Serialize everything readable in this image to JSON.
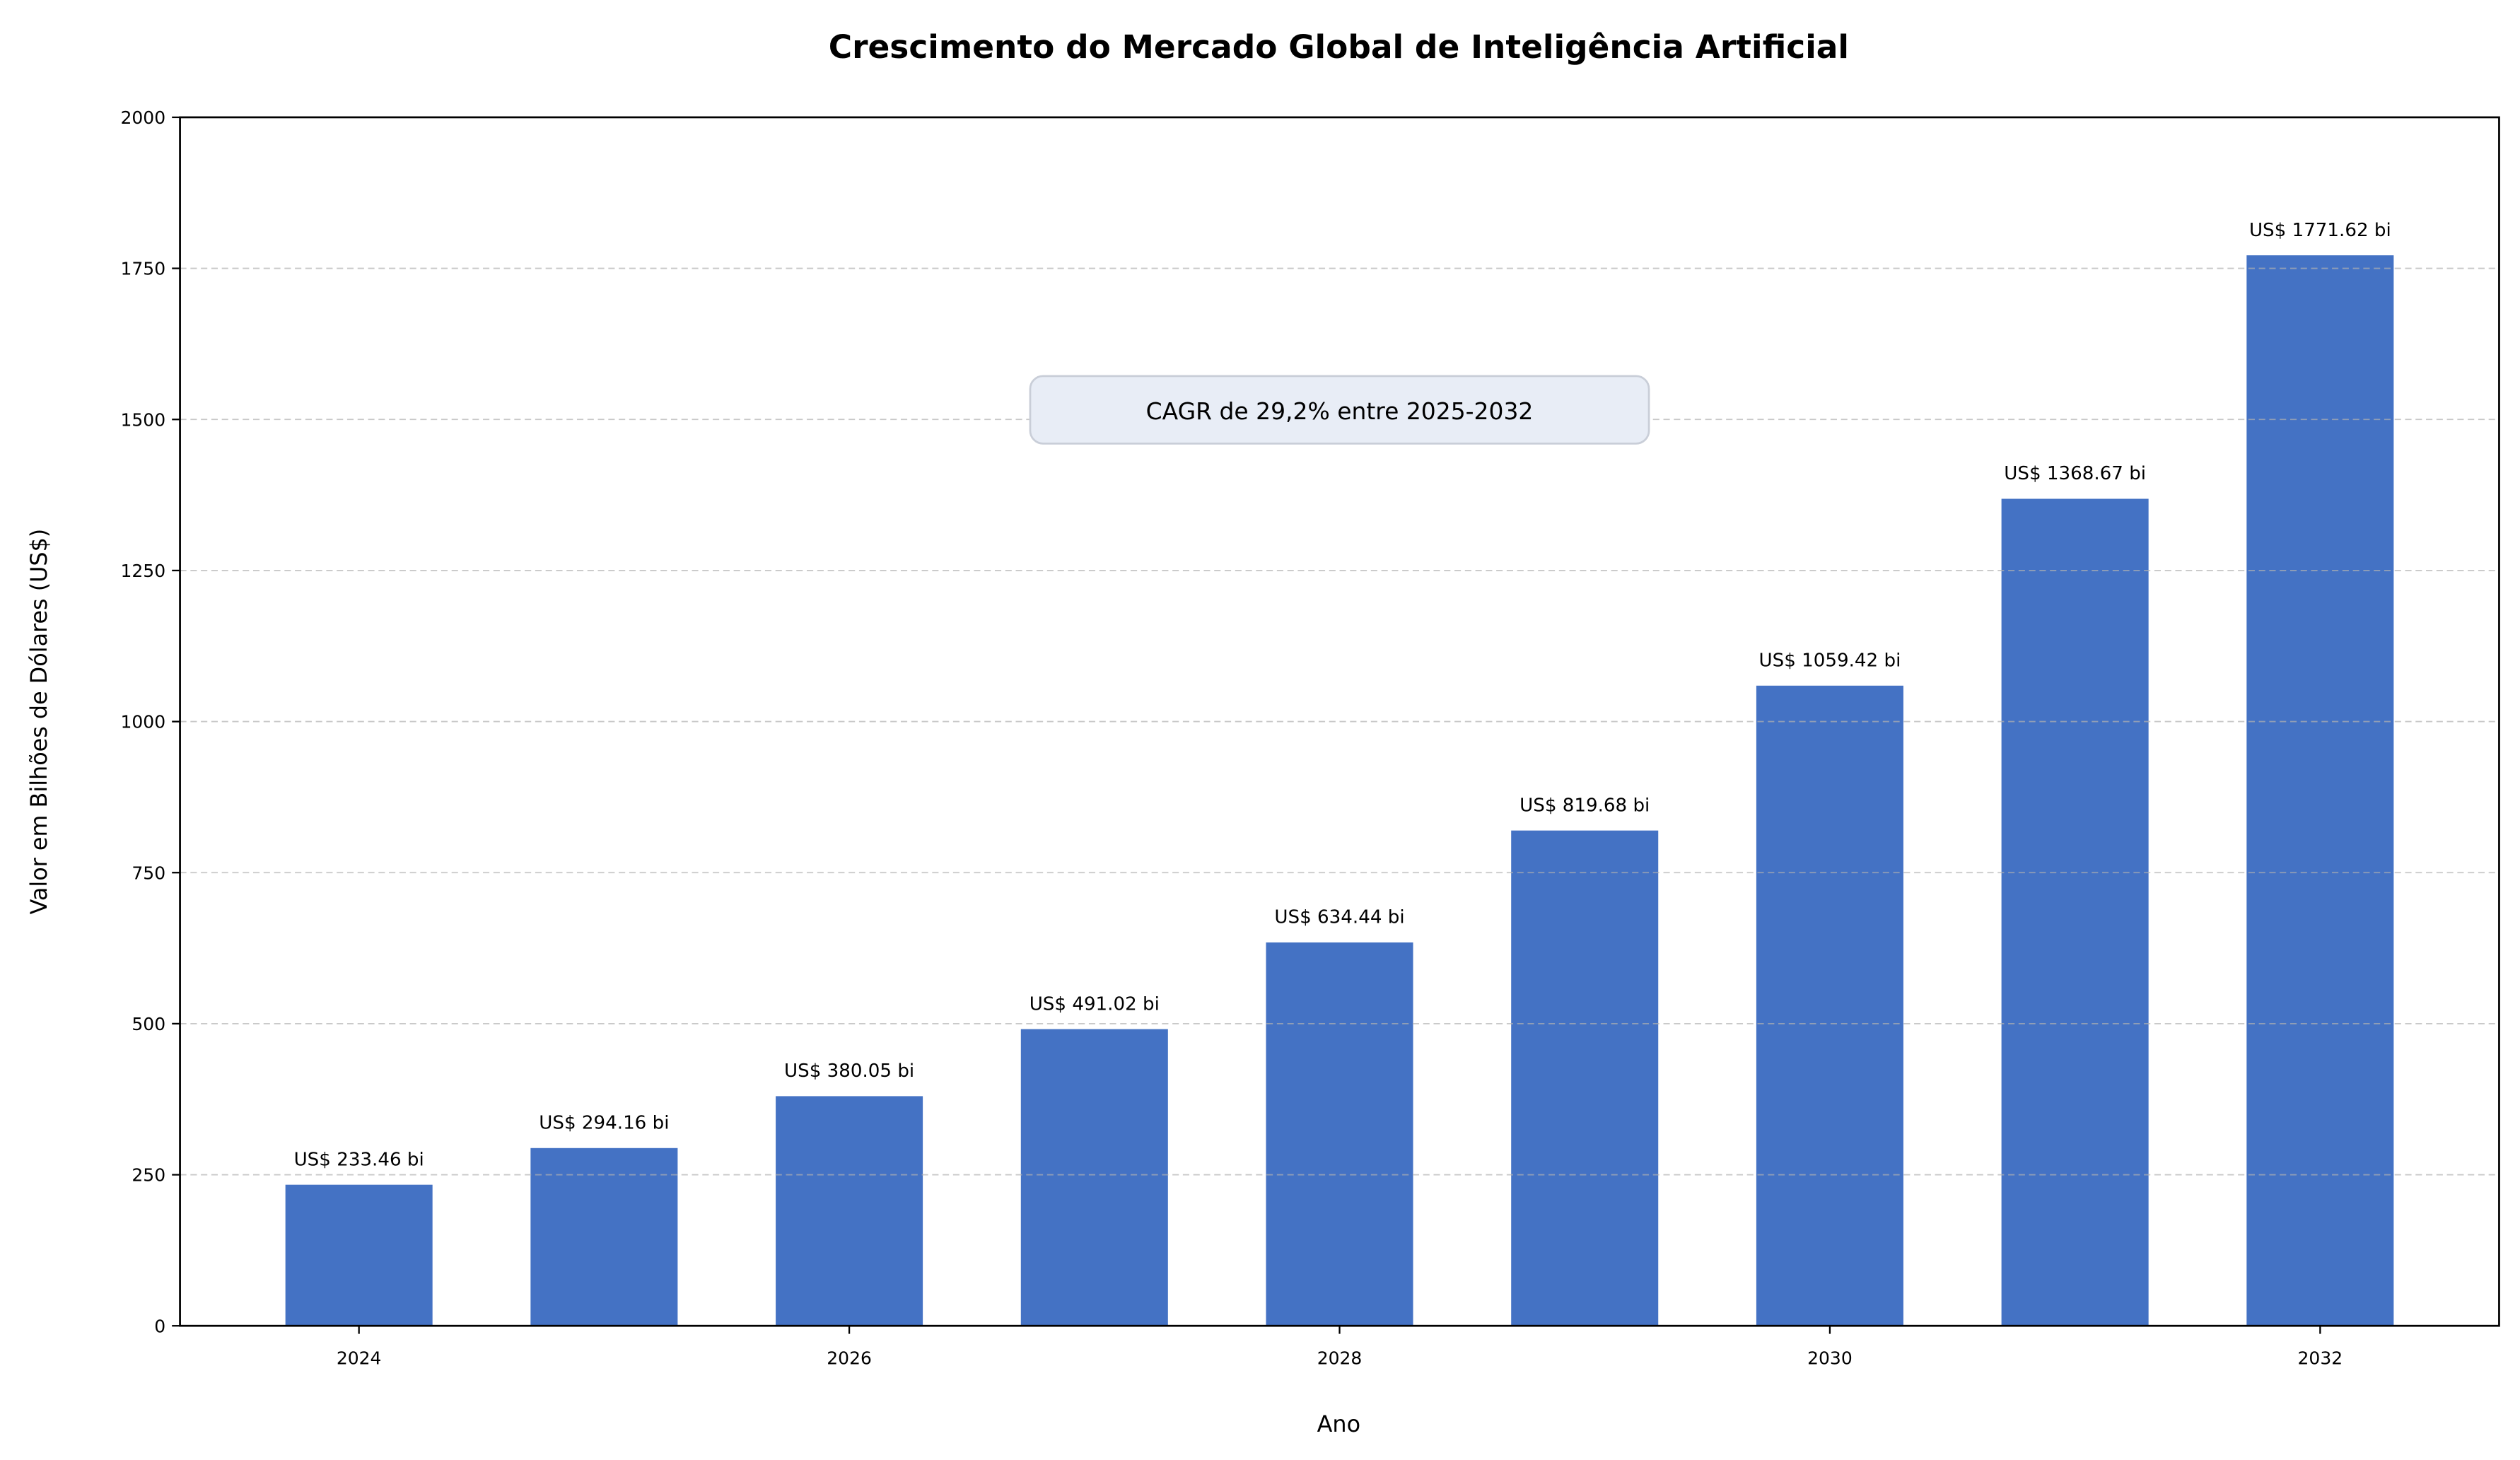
{
  "chart_data": {
    "type": "bar",
    "title": "Crescimento do Mercado Global de Inteligência Artificial",
    "xlabel": "Ano",
    "ylabel": "Valor em Bilhões de Dólares (US$)",
    "categories": [
      2024,
      2025,
      2026,
      2027,
      2028,
      2029,
      2030,
      2031,
      2032
    ],
    "values": [
      233.46,
      294.16,
      380.05,
      491.02,
      634.44,
      819.68,
      1059.42,
      1368.67,
      1771.62
    ],
    "data_labels": [
      "US$ 233.46 bi",
      "US$ 294.16 bi",
      "US$ 380.05 bi",
      "US$ 491.02 bi",
      "US$ 634.44 bi",
      "US$ 819.68 bi",
      "US$ 1059.42 bi",
      "US$ 1368.67 bi",
      "US$ 1771.62 bi"
    ],
    "x_ticks": [
      "2024",
      "2026",
      "2028",
      "2030",
      "2032"
    ],
    "y_ticks": [
      "0",
      "250",
      "500",
      "750",
      "1000",
      "1250",
      "1500",
      "1750",
      "2000"
    ],
    "ylim": [
      0,
      2000
    ],
    "xlim": [
      2023.27,
      2032.73
    ],
    "grid": "y, dashed",
    "annotation": "CAGR de 29,2% entre 2025-2032",
    "colors": {
      "bar": "#4472C4",
      "grid": "#b0b0b0",
      "annotation_bg": "#E8EDF6"
    }
  }
}
